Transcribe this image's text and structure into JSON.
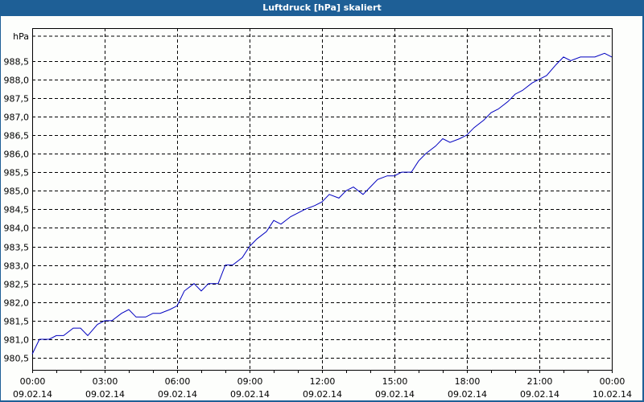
{
  "window": {
    "title": "Luftdruck [hPa] skaliert"
  },
  "chart_data": {
    "type": "line",
    "title": "Luftdruck [hPa] skaliert",
    "ylabel": "hPa",
    "xlabel": "",
    "ylim": [
      980.3,
      988.8
    ],
    "grid": true,
    "y_ticks": [
      "988,5",
      "988,0",
      "987,5",
      "987,0",
      "986,5",
      "986,0",
      "985,5",
      "985,0",
      "984,5",
      "984,0",
      "983,5",
      "983,0",
      "982,5",
      "982,0",
      "981,5",
      "981,0",
      "980,5"
    ],
    "x_ticks": [
      {
        "time": "00:00",
        "date": "09.02.14"
      },
      {
        "time": "03:00",
        "date": "09.02.14"
      },
      {
        "time": "06:00",
        "date": "09.02.14"
      },
      {
        "time": "09:00",
        "date": "09.02.14"
      },
      {
        "time": "12:00",
        "date": "09.02.14"
      },
      {
        "time": "15:00",
        "date": "09.02.14"
      },
      {
        "time": "18:00",
        "date": "09.02.14"
      },
      {
        "time": "21:00",
        "date": "09.02.14"
      },
      {
        "time": "00:00",
        "date": "10.02.14"
      }
    ],
    "series": [
      {
        "name": "Luftdruck",
        "color": "#0000c0",
        "x_hours": [
          0,
          0.3,
          0.7,
          1.0,
          1.3,
          1.7,
          2.0,
          2.3,
          2.7,
          3.0,
          3.3,
          3.7,
          4.0,
          4.3,
          4.7,
          5.0,
          5.3,
          5.7,
          6.0,
          6.3,
          6.7,
          7.0,
          7.3,
          7.7,
          8.0,
          8.3,
          8.7,
          9.0,
          9.3,
          9.7,
          10.0,
          10.3,
          10.7,
          11.0,
          11.3,
          11.7,
          12.0,
          12.3,
          12.7,
          13.0,
          13.3,
          13.7,
          14.0,
          14.3,
          14.7,
          15.0,
          15.3,
          15.7,
          16.0,
          16.3,
          16.7,
          17.0,
          17.3,
          17.7,
          18.0,
          18.3,
          18.7,
          19.0,
          19.3,
          19.7,
          20.0,
          20.3,
          20.7,
          21.0,
          21.3,
          21.7,
          22.0,
          22.3,
          22.7,
          23.0,
          23.3,
          23.7,
          24.0
        ],
        "values": [
          980.6,
          981.0,
          981.0,
          981.1,
          981.1,
          981.3,
          981.3,
          981.1,
          981.4,
          981.5,
          981.5,
          981.7,
          981.8,
          981.6,
          981.6,
          981.7,
          981.7,
          981.8,
          981.9,
          982.3,
          982.5,
          982.3,
          982.5,
          982.5,
          983.0,
          983.0,
          983.2,
          983.5,
          983.7,
          983.9,
          984.2,
          984.1,
          984.3,
          984.4,
          984.5,
          984.6,
          984.7,
          984.9,
          984.8,
          985.0,
          985.1,
          984.9,
          985.1,
          985.3,
          985.4,
          985.4,
          985.5,
          985.5,
          985.8,
          986.0,
          986.2,
          986.4,
          986.3,
          986.4,
          986.5,
          986.7,
          986.9,
          987.1,
          987.2,
          987.4,
          987.6,
          987.7,
          987.9,
          988.0,
          988.1,
          988.4,
          988.6,
          988.5,
          988.6,
          988.6,
          988.6,
          988.7,
          988.6
        ]
      }
    ]
  }
}
